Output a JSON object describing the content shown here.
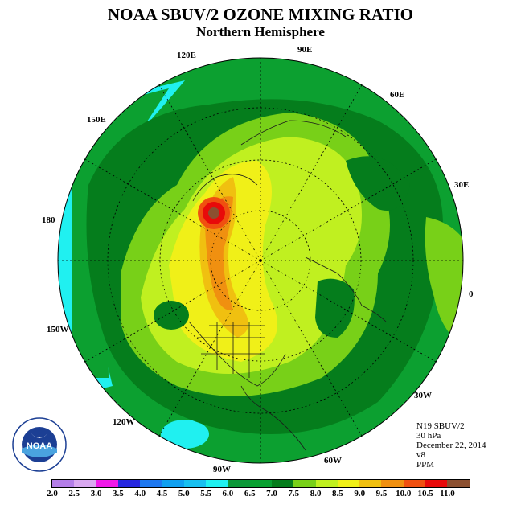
{
  "title": "NOAA SBUV/2 OZONE MIXING RATIO",
  "subtitle": "Northern Hemisphere",
  "longitude_labels": [
    "90E",
    "60E",
    "30E",
    "0",
    "30W",
    "60W",
    "90W",
    "120W",
    "150W",
    "180",
    "150E",
    "120E"
  ],
  "info": {
    "instrument": "N19 SBUV/2",
    "level": "30 hPa",
    "date": "December 22, 2014",
    "version": "v8",
    "units": "PPM"
  },
  "logo": {
    "text": "NOAA",
    "ring_text": "NATIONAL OCEANIC AND ATMOSPHERIC ADMINISTRATION · U.S. DEPARTMENT OF COMMERCE"
  },
  "colorbar": {
    "labels": [
      "2.0",
      "2.5",
      "3.0",
      "3.5",
      "4.0",
      "4.5",
      "5.0",
      "5.5",
      "6.0",
      "6.5",
      "7.0",
      "7.5",
      "8.0",
      "8.5",
      "9.0",
      "9.5",
      "10.0",
      "10.5",
      "11.0"
    ],
    "colors": [
      "#b47ee8",
      "#d9a8f0",
      "#f018e8",
      "#2828e0",
      "#1e78f0",
      "#10a0f0",
      "#18c0f0",
      "#20f0f0",
      "#0c9838",
      "#08a030",
      "#057d1c",
      "#78d018",
      "#c0f020",
      "#f0f018",
      "#f0c010",
      "#f09010",
      "#f05010",
      "#e80a0a",
      "#8c5030"
    ]
  },
  "colors": {
    "background_field": "#0ca030",
    "dark_band": "#057d1c",
    "cyan": "#20f0f0",
    "light_green": "#78d018",
    "yellow_green": "#c0f020",
    "yellow": "#f0f018",
    "orange": "#f09010",
    "red": "#e80a0a",
    "brown": "#8c5030"
  }
}
